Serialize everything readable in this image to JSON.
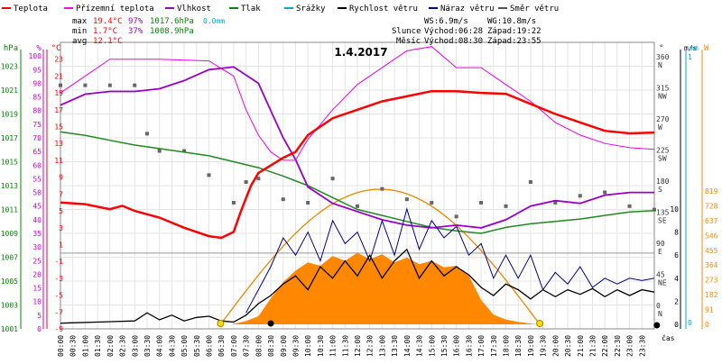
{
  "chart_data": {
    "type": "line",
    "title": "1.4.2017",
    "legend": [
      {
        "key": "temp",
        "label": "Teplota",
        "color": "#ff0000"
      },
      {
        "key": "dew",
        "label": "Přízemní teplota",
        "color": "#ff00ff"
      },
      {
        "key": "hum",
        "label": "Vlhkost",
        "color": "#9900cc"
      },
      {
        "key": "press",
        "label": "Tlak",
        "color": "#008800"
      },
      {
        "key": "rain",
        "label": "Srážky",
        "color": "#00aacc"
      },
      {
        "key": "wind",
        "label": "Rychlost větru",
        "color": "#000000"
      },
      {
        "key": "gust",
        "label": "Náraz větru",
        "color": "#000088"
      },
      {
        "key": "dir",
        "label": "Směr větru",
        "color": "#555555"
      }
    ],
    "stats": {
      "max": {
        "label": "max",
        "temp": "19.4°C",
        "hum": "97%",
        "press": "1017.6hPa",
        "rain": "0.0mm"
      },
      "min": {
        "label": "min",
        "temp": "1.7°C",
        "hum": "37%",
        "press": "1008.9hPa"
      },
      "avg": {
        "label": "avg",
        "temp": "12.1°C"
      }
    },
    "info": {
      "ws": "WS:6.9m/s",
      "wg": "WG:10.8m/s",
      "sun_label": "Slunce",
      "sunrise": "Východ:06:28",
      "sunset": "Západ:19:22",
      "moon_label": "Měsíc",
      "moonrise": "Východ:08:30",
      "moonset": "Západ:23:55"
    },
    "axes": {
      "hpa": {
        "label": "hPa",
        "color": "#008800",
        "min": 1001,
        "max": 1025,
        "ticks": [
          1001,
          1003,
          1005,
          1007,
          1009,
          1011,
          1013,
          1015,
          1017,
          1019,
          1021,
          1023
        ]
      },
      "pct": {
        "label": "%",
        "color": "#cc00cc",
        "ticks": [
          0,
          5,
          10,
          15,
          20,
          25,
          30,
          35,
          40,
          45,
          50,
          55,
          60,
          65,
          70,
          75,
          80,
          85,
          90,
          95,
          100
        ]
      },
      "degc": {
        "label": "°C",
        "color": "#ff0000",
        "min": -9,
        "max": 25,
        "ticks": [
          -9,
          -7,
          -5,
          -3,
          -1,
          1,
          3,
          5,
          7,
          9,
          11,
          13,
          15,
          17,
          19,
          21,
          23
        ]
      },
      "dir": {
        "label": "°",
        "ticks": [
          {
            "value": 0,
            "text": "0",
            "sub": "N"
          },
          {
            "value": 45,
            "text": "45",
            "sub": "NE"
          },
          {
            "value": 90,
            "text": "90",
            "sub": "E"
          },
          {
            "value": 135,
            "text": "135",
            "sub": "SE"
          },
          {
            "value": 180,
            "text": "180",
            "sub": "S"
          },
          {
            "value": 225,
            "text": "225",
            "sub": "SW"
          },
          {
            "value": 270,
            "text": "270",
            "sub": "W"
          },
          {
            "value": 315,
            "text": "315",
            "sub": "NW"
          },
          {
            "value": 360,
            "text": "360",
            "sub": "N"
          }
        ]
      },
      "ms": {
        "label": "m/s",
        "ticks": [
          0,
          2,
          4,
          6,
          8,
          10
        ]
      },
      "mm": {
        "label": "mm",
        "color": "#00aacc",
        "ticks": [
          0,
          1
        ]
      },
      "w": {
        "label": "W",
        "color": "#ff8800",
        "ticks": [
          0,
          91,
          182,
          273,
          364,
          455,
          546,
          637,
          728,
          819
        ]
      },
      "time_label": "čas",
      "x_ticks": [
        "00:00",
        "00:30",
        "01:00",
        "01:30",
        "02:00",
        "02:30",
        "03:00",
        "03:30",
        "04:00",
        "04:30",
        "05:00",
        "05:30",
        "06:00",
        "06:30",
        "07:00",
        "07:30",
        "08:00",
        "08:30",
        "09:00",
        "09:30",
        "10:00",
        "10:30",
        "11:00",
        "11:30",
        "12:00",
        "12:30",
        "13:00",
        "13:30",
        "14:00",
        "14:30",
        "15:00",
        "15:30",
        "16:00",
        "16:30",
        "17:00",
        "17:30",
        "18:00",
        "18:30",
        "19:00",
        "19:30",
        "20:00",
        "20:30",
        "21:00",
        "21:30",
        "22:00",
        "22:30",
        "23:00",
        "23:30"
      ]
    },
    "series": {
      "temp": [
        [
          0,
          6
        ],
        [
          1,
          5.8
        ],
        [
          2,
          5.2
        ],
        [
          2.5,
          5.6
        ],
        [
          3,
          5
        ],
        [
          4,
          4.2
        ],
        [
          5,
          3
        ],
        [
          6,
          2
        ],
        [
          6.5,
          1.8
        ],
        [
          7,
          2.5
        ],
        [
          7.3,
          5
        ],
        [
          7.7,
          8
        ],
        [
          8,
          9.5
        ],
        [
          9,
          11.3
        ],
        [
          9.5,
          12
        ],
        [
          10,
          14
        ],
        [
          11,
          16
        ],
        [
          12,
          17
        ],
        [
          13,
          18
        ],
        [
          14,
          18.6
        ],
        [
          15,
          19.2
        ],
        [
          16,
          19.2
        ],
        [
          17,
          19
        ],
        [
          18,
          18.9
        ],
        [
          19,
          17.7
        ],
        [
          20,
          16.5
        ],
        [
          21,
          15.5
        ],
        [
          22,
          14.5
        ],
        [
          23,
          14.2
        ],
        [
          24,
          14.3
        ]
      ],
      "dew": [
        [
          0,
          19
        ],
        [
          1,
          21
        ],
        [
          2,
          23
        ],
        [
          4,
          23
        ],
        [
          6,
          22.8
        ],
        [
          7,
          21
        ],
        [
          7.5,
          17
        ],
        [
          8,
          14
        ],
        [
          8.5,
          12
        ],
        [
          9,
          11
        ],
        [
          9.5,
          11
        ],
        [
          10,
          13.5
        ],
        [
          11,
          17
        ],
        [
          12,
          20
        ],
        [
          13,
          22
        ],
        [
          13.5,
          23
        ],
        [
          14,
          24
        ],
        [
          15,
          24.5
        ],
        [
          16,
          22
        ],
        [
          17,
          22
        ],
        [
          18,
          20
        ],
        [
          19,
          18
        ],
        [
          20,
          15.5
        ],
        [
          21,
          14
        ],
        [
          22,
          13
        ],
        [
          23,
          12.5
        ],
        [
          24,
          12.3
        ]
      ],
      "hum": [
        [
          0,
          82
        ],
        [
          1,
          86
        ],
        [
          2,
          87
        ],
        [
          3,
          87
        ],
        [
          4,
          88
        ],
        [
          5,
          91
        ],
        [
          6,
          95
        ],
        [
          7,
          96
        ],
        [
          8,
          90
        ],
        [
          8.5,
          80
        ],
        [
          9,
          70
        ],
        [
          9.5,
          62
        ],
        [
          10,
          52
        ],
        [
          11,
          46
        ],
        [
          12,
          43
        ],
        [
          13,
          40
        ],
        [
          14,
          38
        ],
        [
          15,
          37
        ],
        [
          16,
          38
        ],
        [
          17,
          37
        ],
        [
          18,
          40
        ],
        [
          19,
          45
        ],
        [
          20,
          47
        ],
        [
          21,
          46
        ],
        [
          22,
          49
        ],
        [
          23,
          50
        ],
        [
          24,
          50
        ]
      ],
      "press": [
        [
          0,
          1017.5
        ],
        [
          1,
          1017.2
        ],
        [
          2,
          1016.8
        ],
        [
          3,
          1016.4
        ],
        [
          4,
          1016.1
        ],
        [
          5,
          1015.8
        ],
        [
          6,
          1015.5
        ],
        [
          7,
          1015
        ],
        [
          8,
          1014.5
        ],
        [
          9,
          1013.8
        ],
        [
          10,
          1013
        ],
        [
          11,
          1012
        ],
        [
          12,
          1011
        ],
        [
          13,
          1010.5
        ],
        [
          14,
          1010
        ],
        [
          15,
          1009.5
        ],
        [
          16,
          1009.2
        ],
        [
          17,
          1009
        ],
        [
          18,
          1009.5
        ],
        [
          19,
          1009.8
        ],
        [
          20,
          1010
        ],
        [
          21,
          1010.2
        ],
        [
          22,
          1010.5
        ],
        [
          23,
          1010.8
        ],
        [
          24,
          1010.9
        ]
      ],
      "wind": [
        [
          0,
          0.1
        ],
        [
          3,
          0.3
        ],
        [
          3.5,
          1.0
        ],
        [
          4,
          0.4
        ],
        [
          4.5,
          0.8
        ],
        [
          5,
          0.3
        ],
        [
          5.5,
          0.6
        ],
        [
          6,
          0.7
        ],
        [
          6.5,
          0.3
        ],
        [
          7,
          0.2
        ],
        [
          7.5,
          0.8
        ],
        [
          8,
          1.8
        ],
        [
          8.5,
          2.5
        ],
        [
          9,
          3.5
        ],
        [
          9.5,
          4.2
        ],
        [
          10,
          3
        ],
        [
          10.5,
          5
        ],
        [
          11,
          4
        ],
        [
          11.5,
          5.5
        ],
        [
          12,
          4.2
        ],
        [
          12.5,
          6
        ],
        [
          13,
          4
        ],
        [
          13.5,
          5.5
        ],
        [
          14,
          6.5
        ],
        [
          14.5,
          4
        ],
        [
          15,
          5.5
        ],
        [
          15.5,
          4.2
        ],
        [
          16,
          5
        ],
        [
          16.5,
          4.3
        ],
        [
          17,
          3.2
        ],
        [
          17.5,
          2.5
        ],
        [
          18,
          3.5
        ],
        [
          18.5,
          3
        ],
        [
          19,
          2.2
        ],
        [
          19.5,
          3
        ],
        [
          20,
          2.4
        ],
        [
          20.5,
          3
        ],
        [
          21,
          2.6
        ],
        [
          21.5,
          3.1
        ],
        [
          22,
          2.4
        ],
        [
          22.5,
          3
        ],
        [
          23,
          2.5
        ],
        [
          23.5,
          3
        ],
        [
          24,
          2.8
        ]
      ],
      "gust": [
        [
          7.5,
          1
        ],
        [
          8,
          3
        ],
        [
          8.5,
          5
        ],
        [
          9,
          7.5
        ],
        [
          9.5,
          6
        ],
        [
          10,
          8
        ],
        [
          10.5,
          5.5
        ],
        [
          11,
          9
        ],
        [
          11.5,
          7
        ],
        [
          12,
          8
        ],
        [
          12.5,
          5.5
        ],
        [
          13,
          9
        ],
        [
          13.5,
          6
        ],
        [
          14,
          10
        ],
        [
          14.5,
          6.5
        ],
        [
          15,
          9
        ],
        [
          15.5,
          7.5
        ],
        [
          16,
          8.5
        ],
        [
          16.5,
          6
        ],
        [
          17,
          7
        ],
        [
          17.5,
          4
        ],
        [
          18,
          6
        ],
        [
          18.5,
          4
        ],
        [
          19,
          6
        ],
        [
          19.5,
          3
        ],
        [
          20,
          4.5
        ],
        [
          20.5,
          3.5
        ],
        [
          21,
          5
        ],
        [
          21.5,
          3.2
        ],
        [
          22,
          4
        ],
        [
          22.5,
          3.5
        ],
        [
          23,
          4
        ],
        [
          23.5,
          3.8
        ],
        [
          24,
          4
        ]
      ],
      "solar": [
        [
          6.9,
          0
        ],
        [
          7.5,
          20
        ],
        [
          8,
          50
        ],
        [
          8.5,
          160
        ],
        [
          9,
          260
        ],
        [
          9.5,
          330
        ],
        [
          10,
          380
        ],
        [
          10.5,
          360
        ],
        [
          11,
          420
        ],
        [
          11.5,
          390
        ],
        [
          12,
          440
        ],
        [
          12.5,
          400
        ],
        [
          13,
          430
        ],
        [
          13.5,
          380
        ],
        [
          14,
          410
        ],
        [
          14.5,
          370
        ],
        [
          15,
          390
        ],
        [
          15.5,
          350
        ],
        [
          16,
          360
        ],
        [
          16.5,
          300
        ],
        [
          17,
          150
        ],
        [
          17.5,
          60
        ],
        [
          18,
          30
        ],
        [
          18.5,
          15
        ],
        [
          19,
          5
        ],
        [
          19.3,
          0
        ]
      ],
      "dir": [
        [
          0,
          320
        ],
        [
          1,
          320
        ],
        [
          2,
          320
        ],
        [
          3,
          320
        ],
        [
          3.5,
          250
        ],
        [
          4,
          225
        ],
        [
          5,
          225
        ],
        [
          6,
          190
        ],
        [
          7,
          150
        ],
        [
          7.5,
          180
        ],
        [
          8,
          185
        ],
        [
          9,
          155
        ],
        [
          10,
          150
        ],
        [
          11,
          185
        ],
        [
          12,
          145
        ],
        [
          13,
          170
        ],
        [
          14,
          155
        ],
        [
          15,
          150
        ],
        [
          16,
          130
        ],
        [
          17,
          150
        ],
        [
          18,
          145
        ],
        [
          19,
          180
        ],
        [
          20,
          150
        ],
        [
          21,
          160
        ],
        [
          22,
          165
        ],
        [
          23,
          145
        ],
        [
          24,
          140
        ]
      ]
    },
    "markers": {
      "sunrise_hour": 6.47,
      "sunset_hour": 19.37,
      "moonrise_hour": 8.5,
      "moonset_hour": 23.92
    }
  }
}
